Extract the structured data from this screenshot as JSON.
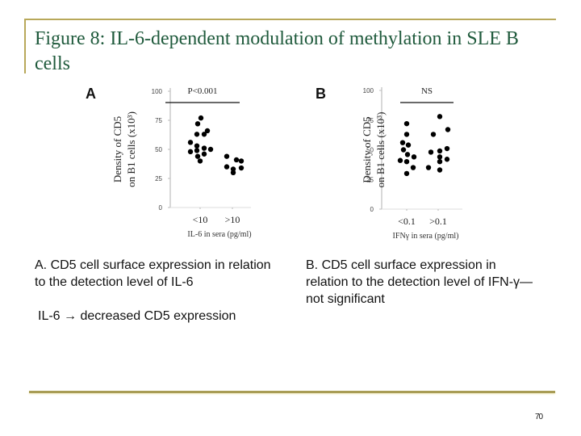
{
  "slide": {
    "title": "Figure 8: IL-6-dependent modulation of methylation in SLE B cells",
    "page_number": "70",
    "colors": {
      "title": "#1f5a3c",
      "rule": "#b8a85a",
      "dots": "#000000"
    }
  },
  "captions": {
    "a": "A. CD5 cell surface expression in relation to the detection level of IL-6",
    "a_note": "IL-6 → decreased CD5 expression",
    "b": "B. CD5 cell surface expression in relation to the detection level of IFN-γ—not significant"
  },
  "chart_data": [
    {
      "panel": "A",
      "type": "scatter",
      "title": "",
      "annotation": "P<0.001",
      "xlabel": "IL-6 in sera (pg/ml)",
      "ylabel": "Density of CD5 on B1 cells (x10³)",
      "ylim": [
        0,
        100
      ],
      "yticks": [
        0,
        25,
        50,
        75,
        100
      ],
      "categories": [
        "<10",
        ">10"
      ],
      "series": [
        {
          "name": "<10",
          "values": [
            77,
            72,
            66,
            63,
            63,
            56,
            53,
            51,
            50,
            49,
            48,
            46,
            44,
            40
          ]
        },
        {
          "name": ">10",
          "values": [
            44,
            41,
            40,
            35,
            34,
            33,
            30
          ]
        }
      ],
      "grid": false
    },
    {
      "panel": "B",
      "type": "scatter",
      "title": "",
      "annotation": "NS",
      "xlabel": "IFNγ in sera (pg/ml)",
      "ylabel": "Density of CD5 on B1 cells (x10³)",
      "ylim": [
        0,
        100
      ],
      "yticks": [
        0,
        25,
        50,
        75,
        100
      ],
      "categories": [
        "<0.1",
        ">0.1"
      ],
      "series": [
        {
          "name": "<0.1",
          "values": [
            72,
            63,
            56,
            54,
            50,
            46,
            44,
            41,
            40,
            35,
            30
          ]
        },
        {
          "name": ">0.1",
          "values": [
            78,
            63,
            67,
            51,
            49,
            48,
            44,
            42,
            40,
            35,
            33
          ]
        }
      ],
      "grid": false
    }
  ]
}
